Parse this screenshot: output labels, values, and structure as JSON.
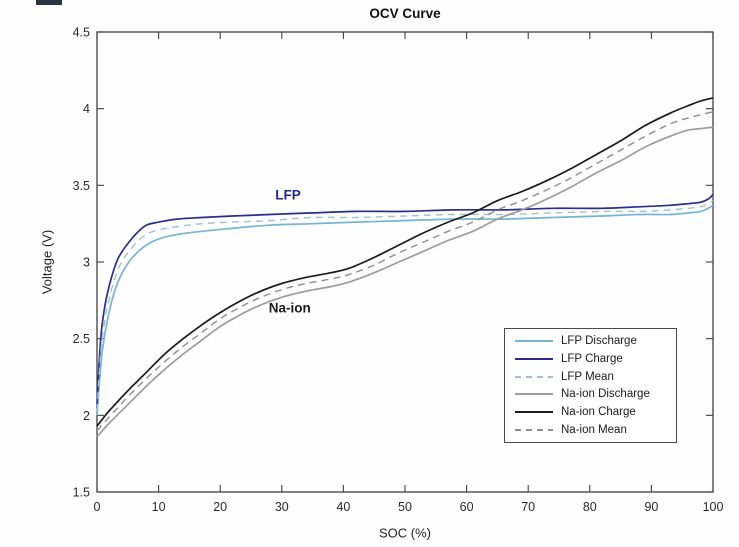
{
  "title": "OCV Curve",
  "chart_data": {
    "type": "line",
    "title": "OCV Curve",
    "xlabel": "SOC (%)",
    "ylabel": "Voltage (V)",
    "xlim": [
      0,
      100
    ],
    "ylim": [
      1.5,
      4.5
    ],
    "grid": false,
    "legend_position": "inside lower right",
    "xtick_values": [
      0,
      10,
      20,
      30,
      40,
      50,
      60,
      70,
      80,
      90,
      100
    ],
    "xtick_labels": [
      "0",
      "10",
      "20",
      "30",
      "40",
      "50",
      "60",
      "70",
      "80",
      "90",
      "100"
    ],
    "ytick_values": [
      1.5,
      2,
      2.5,
      3,
      3.5,
      4,
      4.5
    ],
    "ytick_labels": [
      "1.5",
      "2",
      "2.5",
      "3",
      "3.5",
      "4",
      "4.5"
    ],
    "axis_color": "#404040",
    "annotations": [
      {
        "text": "LFP",
        "soc": 31,
        "voltage": 3.44,
        "color": "#1f2b8a"
      },
      {
        "text": "Na-ion",
        "soc": 31.3,
        "voltage": 2.7,
        "color": "#1a1a1a"
      }
    ],
    "series": [
      {
        "name": "LFP Discharge",
        "color": "#76b4d6",
        "dash": false,
        "x": [
          0,
          0.4,
          0.8,
          1.5,
          2.5,
          3.5,
          5,
          6.5,
          8,
          10,
          13,
          17,
          22,
          28,
          35,
          42,
          50,
          58,
          66,
          74,
          82,
          88,
          93,
          96,
          98,
          99.2,
          100
        ],
        "y": [
          2.0,
          2.22,
          2.4,
          2.58,
          2.76,
          2.88,
          2.99,
          3.06,
          3.11,
          3.15,
          3.18,
          3.2,
          3.22,
          3.24,
          3.25,
          3.26,
          3.27,
          3.28,
          3.28,
          3.29,
          3.3,
          3.31,
          3.31,
          3.32,
          3.33,
          3.35,
          3.37
        ]
      },
      {
        "name": "LFP Charge",
        "color": "#2c2d8f",
        "dash": false,
        "x": [
          0,
          0.4,
          0.8,
          1.5,
          2.5,
          3.5,
          5,
          6.5,
          8,
          10,
          13,
          17,
          22,
          28,
          35,
          42,
          50,
          58,
          66,
          74,
          82,
          88,
          93,
          96,
          98,
          99.2,
          100
        ],
        "y": [
          2.05,
          2.38,
          2.58,
          2.76,
          2.92,
          3.03,
          3.12,
          3.19,
          3.24,
          3.26,
          3.28,
          3.29,
          3.3,
          3.31,
          3.32,
          3.33,
          3.33,
          3.34,
          3.34,
          3.35,
          3.35,
          3.36,
          3.37,
          3.38,
          3.39,
          3.41,
          3.44
        ]
      },
      {
        "name": "LFP Mean",
        "color": "#9fc3c9",
        "dash": true,
        "x": [
          0,
          0.4,
          0.8,
          1.5,
          2.5,
          3.5,
          5,
          6.5,
          8,
          10,
          13,
          17,
          22,
          28,
          35,
          42,
          50,
          58,
          66,
          74,
          82,
          88,
          93,
          96,
          98,
          99.2,
          100
        ],
        "y": [
          2.03,
          2.3,
          2.49,
          2.67,
          2.84,
          2.96,
          3.06,
          3.13,
          3.18,
          3.21,
          3.23,
          3.25,
          3.26,
          3.27,
          3.29,
          3.29,
          3.3,
          3.31,
          3.31,
          3.32,
          3.33,
          3.33,
          3.34,
          3.35,
          3.36,
          3.38,
          3.4
        ]
      },
      {
        "name": "Na-ion Discharge",
        "color": "#9c9c9c",
        "dash": false,
        "x": [
          0,
          2,
          5,
          8,
          11,
          14,
          17,
          20,
          23,
          26,
          30,
          34,
          38,
          41,
          45,
          49,
          53,
          57,
          61,
          65,
          69,
          73,
          77,
          81,
          85,
          89,
          93,
          96,
          98,
          100
        ],
        "y": [
          1.86,
          1.95,
          2.07,
          2.19,
          2.3,
          2.4,
          2.49,
          2.58,
          2.65,
          2.71,
          2.77,
          2.81,
          2.84,
          2.87,
          2.93,
          3.0,
          3.07,
          3.14,
          3.2,
          3.28,
          3.34,
          3.41,
          3.49,
          3.58,
          3.66,
          3.75,
          3.82,
          3.86,
          3.87,
          3.88
        ]
      },
      {
        "name": "Na-ion Charge",
        "color": "#1b1b1b",
        "dash": false,
        "x": [
          0,
          2,
          5,
          8,
          11,
          14,
          17,
          20,
          23,
          26,
          30,
          34,
          38,
          41,
          45,
          49,
          53,
          57,
          61,
          65,
          69,
          73,
          77,
          81,
          85,
          89,
          93,
          96,
          98,
          100
        ],
        "y": [
          1.93,
          2.03,
          2.16,
          2.28,
          2.4,
          2.5,
          2.59,
          2.67,
          2.74,
          2.8,
          2.86,
          2.9,
          2.93,
          2.96,
          3.03,
          3.11,
          3.19,
          3.26,
          3.32,
          3.4,
          3.46,
          3.53,
          3.61,
          3.7,
          3.79,
          3.89,
          3.97,
          4.02,
          4.05,
          4.07
        ]
      },
      {
        "name": "Na-ion Mean",
        "color": "#8e8e8e",
        "dash": true,
        "x": [
          0,
          2,
          5,
          8,
          11,
          14,
          17,
          20,
          23,
          26,
          30,
          34,
          38,
          41,
          45,
          49,
          53,
          57,
          61,
          65,
          69,
          73,
          77,
          81,
          85,
          89,
          93,
          96,
          98,
          100
        ],
        "y": [
          1.9,
          1.99,
          2.12,
          2.24,
          2.35,
          2.45,
          2.54,
          2.63,
          2.7,
          2.76,
          2.82,
          2.86,
          2.89,
          2.92,
          2.98,
          3.06,
          3.13,
          3.2,
          3.26,
          3.34,
          3.4,
          3.47,
          3.55,
          3.64,
          3.73,
          3.82,
          3.9,
          3.94,
          3.96,
          3.98
        ]
      }
    ]
  },
  "legend": {
    "items": [
      "LFP Discharge",
      "LFP Charge",
      "LFP Mean",
      "Na-ion Discharge",
      "Na-ion Charge",
      "Na-ion Mean"
    ]
  }
}
